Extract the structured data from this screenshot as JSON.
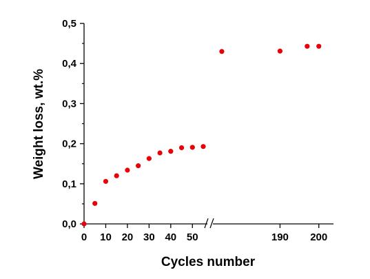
{
  "chart_data": {
    "type": "scatter",
    "xlabel": "Cycles number",
    "ylabel": "Weight loss, wt.%",
    "ylim": [
      0,
      0.5
    ],
    "y_ticks": [
      "0,0",
      "0,1",
      "0,2",
      "0,3",
      "0,4",
      "0,5"
    ],
    "x_ticks_left": [
      "0",
      "10",
      "20",
      "30",
      "40",
      "50"
    ],
    "x_ticks_right": [
      "190",
      "200"
    ],
    "x_axis_break": "after 55",
    "xlim_left": [
      0,
      55
    ],
    "xlim_right": [
      172,
      202
    ],
    "grid": false,
    "legend": "none",
    "marker_color": "#e8000b",
    "series": [
      {
        "x": [
          0,
          5,
          10,
          15,
          20,
          25,
          30,
          35,
          40,
          45,
          50,
          55,
          175,
          190,
          197,
          200
        ],
        "values": [
          0.0,
          0.051,
          0.106,
          0.12,
          0.134,
          0.145,
          0.163,
          0.177,
          0.181,
          0.19,
          0.191,
          0.193,
          0.43,
          0.431,
          0.443,
          0.443
        ]
      }
    ]
  }
}
